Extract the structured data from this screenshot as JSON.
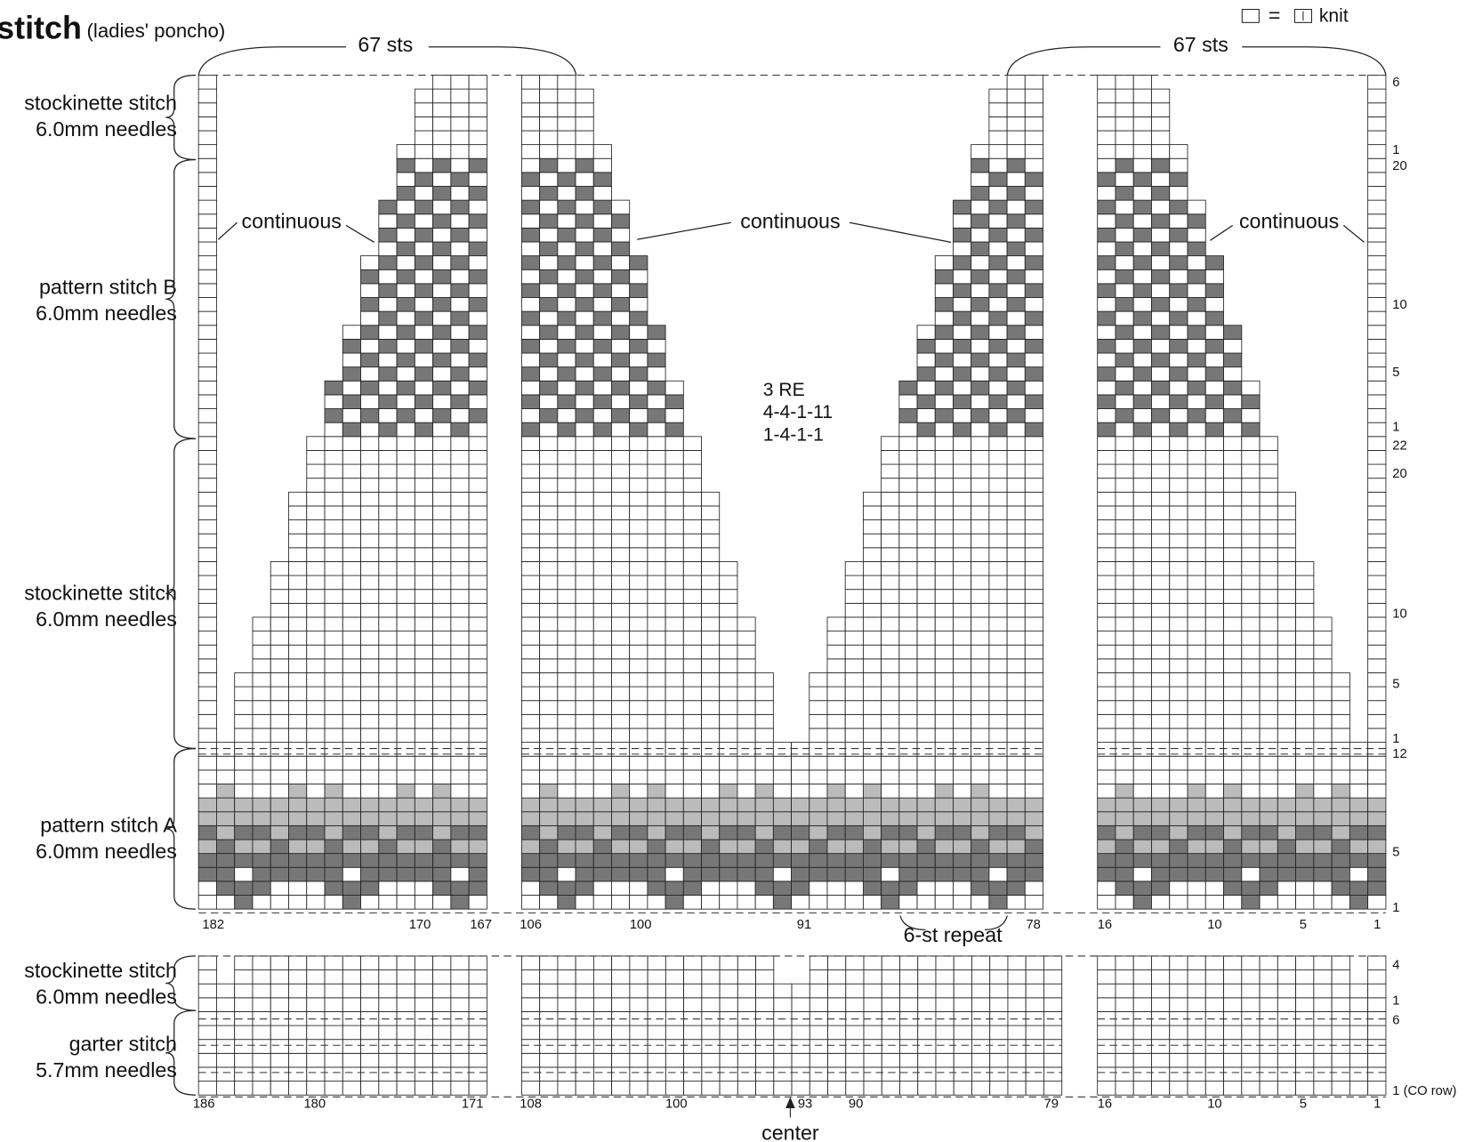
{
  "title": "stitch",
  "subtitle": "(ladies' poncho)",
  "legend": {
    "equals": "=",
    "label": "knit"
  },
  "widths": [
    "67 sts",
    "67 sts"
  ],
  "sections": [
    {
      "name": "stockinette stitch",
      "needles": "6.0mm needles"
    },
    {
      "name": "pattern stitch B",
      "needles": "6.0mm needles"
    },
    {
      "name": "stockinette stitch",
      "needles": "6.0mm needles"
    },
    {
      "name": "pattern stitch A",
      "needles": "6.0mm needles"
    },
    {
      "name": "stockinette stitch",
      "needles": "6.0mm needles"
    },
    {
      "name": "garter stitch",
      "needles": "5.7mm needles"
    }
  ],
  "notes": [
    "continuous",
    "continuous",
    "continuous"
  ],
  "center_note": [
    "3 RE",
    "4-4-1-11",
    "1-4-1-1"
  ],
  "row_numbers_upper": [
    "6",
    "1",
    "20",
    "10",
    "5",
    "1",
    "22",
    "20",
    "10",
    "5",
    "1",
    "12",
    "5",
    "1"
  ],
  "row_numbers_lower": [
    "4",
    "1",
    "6",
    "1 (CO row)"
  ],
  "stitch_numbers_upper": [
    "182",
    "170",
    "167",
    "106",
    "100",
    "91",
    "78",
    "16",
    "10",
    "5",
    "1"
  ],
  "repeat_note": "6-st repeat",
  "stitch_numbers_lower": [
    "186",
    "180",
    "171",
    "108",
    "100",
    "93",
    "90",
    "79",
    "16",
    "10",
    "5",
    "1"
  ],
  "center_label": "center"
}
